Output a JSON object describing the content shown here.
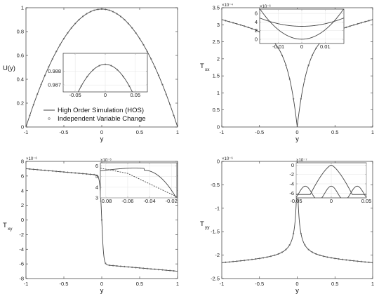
{
  "chart_data": [
    {
      "id": "U",
      "type": "line",
      "ylabel": "U(y)",
      "xlabel": "y",
      "xlim": [
        -1,
        1
      ],
      "ylim": [
        0,
        1
      ],
      "xticks": [
        -1,
        -0.5,
        0,
        0.5,
        1
      ],
      "yticks": [
        0,
        0.2,
        0.4,
        0.6,
        0.8,
        1
      ],
      "xtick_labels": [
        "-1",
        "-0.5",
        "0",
        "0.5",
        "1"
      ],
      "ytick_labels": [
        "0",
        "0.2",
        "0.4",
        "0.6",
        "0.8",
        "1"
      ],
      "exponent": "",
      "curve": "parabola",
      "series": [
        {
          "name": "High Order Simulation (HOS)",
          "style": "solid"
        },
        {
          "name": "Independent Variable Change",
          "style": "markers"
        }
      ],
      "legend_position": "bottom-center",
      "inset": {
        "xlim": [
          -0.07,
          0.07
        ],
        "ylim": [
          0.9865,
          0.9893
        ],
        "xticks": [
          -0.05,
          0,
          0.05
        ],
        "yticks": [
          0.987,
          0.988
        ],
        "xtick_labels": [
          "-0.05",
          "0",
          "0.05"
        ],
        "ytick_labels": [
          "0.987",
          "0.988"
        ],
        "exponent": ""
      }
    },
    {
      "id": "Txx",
      "type": "line",
      "ylabel": "T",
      "ylabel_sub": "xx",
      "xlabel": "y",
      "xlim": [
        -1,
        1
      ],
      "ylim": [
        0,
        0.00035
      ],
      "xticks": [
        -1,
        -0.5,
        0,
        0.5,
        1
      ],
      "yticks": [
        0,
        5e-05,
        0.0001,
        0.00015,
        0.0002,
        0.00025,
        0.0003,
        0.00035
      ],
      "xtick_labels": [
        "-1",
        "-0.5",
        "0",
        "0.5",
        "1"
      ],
      "ytick_labels": [
        "0",
        "0.5",
        "1",
        "1.5",
        "2",
        "2.5",
        "3",
        "3.5"
      ],
      "exponent": "×10⁻⁴",
      "curve": "vshape",
      "inset": {
        "xlim": [
          -0.018,
          0.018
        ],
        "ylim": [
          -1e-06,
          7e-06
        ],
        "xticks": [
          -0.01,
          0,
          0.01
        ],
        "yticks": [
          0,
          2e-06,
          4e-06,
          6e-06
        ],
        "xtick_labels": [
          "-0.01",
          "0",
          "0.01"
        ],
        "ytick_labels": [
          "0",
          "2",
          "4",
          "6"
        ],
        "exponent": "×10⁻⁶"
      }
    },
    {
      "id": "Txy",
      "type": "line",
      "ylabel": "T",
      "ylabel_sub": "xy",
      "xlabel": "y",
      "xlim": [
        -1,
        1
      ],
      "ylim": [
        -8e-06,
        8e-06
      ],
      "xticks": [
        -1,
        -0.5,
        0,
        0.5,
        1
      ],
      "yticks": [
        -8e-06,
        -6e-06,
        -4e-06,
        -2e-06,
        0,
        2e-06,
        4e-06,
        6e-06,
        8e-06
      ],
      "xtick_labels": [
        "-1",
        "-0.5",
        "0",
        "0.5",
        "1"
      ],
      "ytick_labels": [
        "-8",
        "-6",
        "-4",
        "-2",
        "0",
        "2",
        "4",
        "6",
        "8"
      ],
      "exponent": "×10⁻⁶",
      "curve": "antisym",
      "inset": {
        "xlim": [
          -0.085,
          -0.015
        ],
        "ylim": [
          3e-06,
          6.3e-06
        ],
        "xticks": [
          -0.08,
          -0.06,
          -0.04,
          -0.02
        ],
        "yticks": [
          3e-06,
          4e-06,
          5e-06,
          6e-06
        ],
        "xtick_labels": [
          "-0.08",
          "-0.06",
          "-0.04",
          "-0.02"
        ],
        "ytick_labels": [
          "3",
          "4",
          "5",
          "6"
        ],
        "exponent": "×10⁻⁶"
      }
    },
    {
      "id": "Tyy",
      "type": "line",
      "ylabel": "T",
      "ylabel_sub": "yy",
      "xlabel": "y",
      "xlim": [
        -1,
        1
      ],
      "ylim": [
        -2.5e-06,
        0
      ],
      "xticks": [
        -1,
        -0.5,
        0,
        0.5,
        1
      ],
      "yticks": [
        -2.5e-06,
        -2e-06,
        -1.5e-06,
        -1e-06,
        -5e-07,
        0
      ],
      "xtick_labels": [
        "-1",
        "-0.5",
        "0",
        "0.5",
        "1"
      ],
      "ytick_labels": [
        "-2.5",
        "-2",
        "-1.5",
        "-1",
        "-0.5",
        "0"
      ],
      "exponent": "×10⁻⁶",
      "curve": "spike",
      "inset": {
        "xlim": [
          -0.05,
          0.05
        ],
        "ylim": [
          -7e-07,
          5e-08
        ],
        "xticks": [
          -0.05,
          0,
          0.05
        ],
        "yticks": [
          -6e-07,
          -4e-07,
          -2e-07,
          0
        ],
        "xtick_labels": [
          "-0.05",
          "0",
          "0.05"
        ],
        "ytick_labels": [
          "-6",
          "-4",
          "-2",
          "0"
        ],
        "exponent": "×10⁻⁷"
      }
    }
  ]
}
